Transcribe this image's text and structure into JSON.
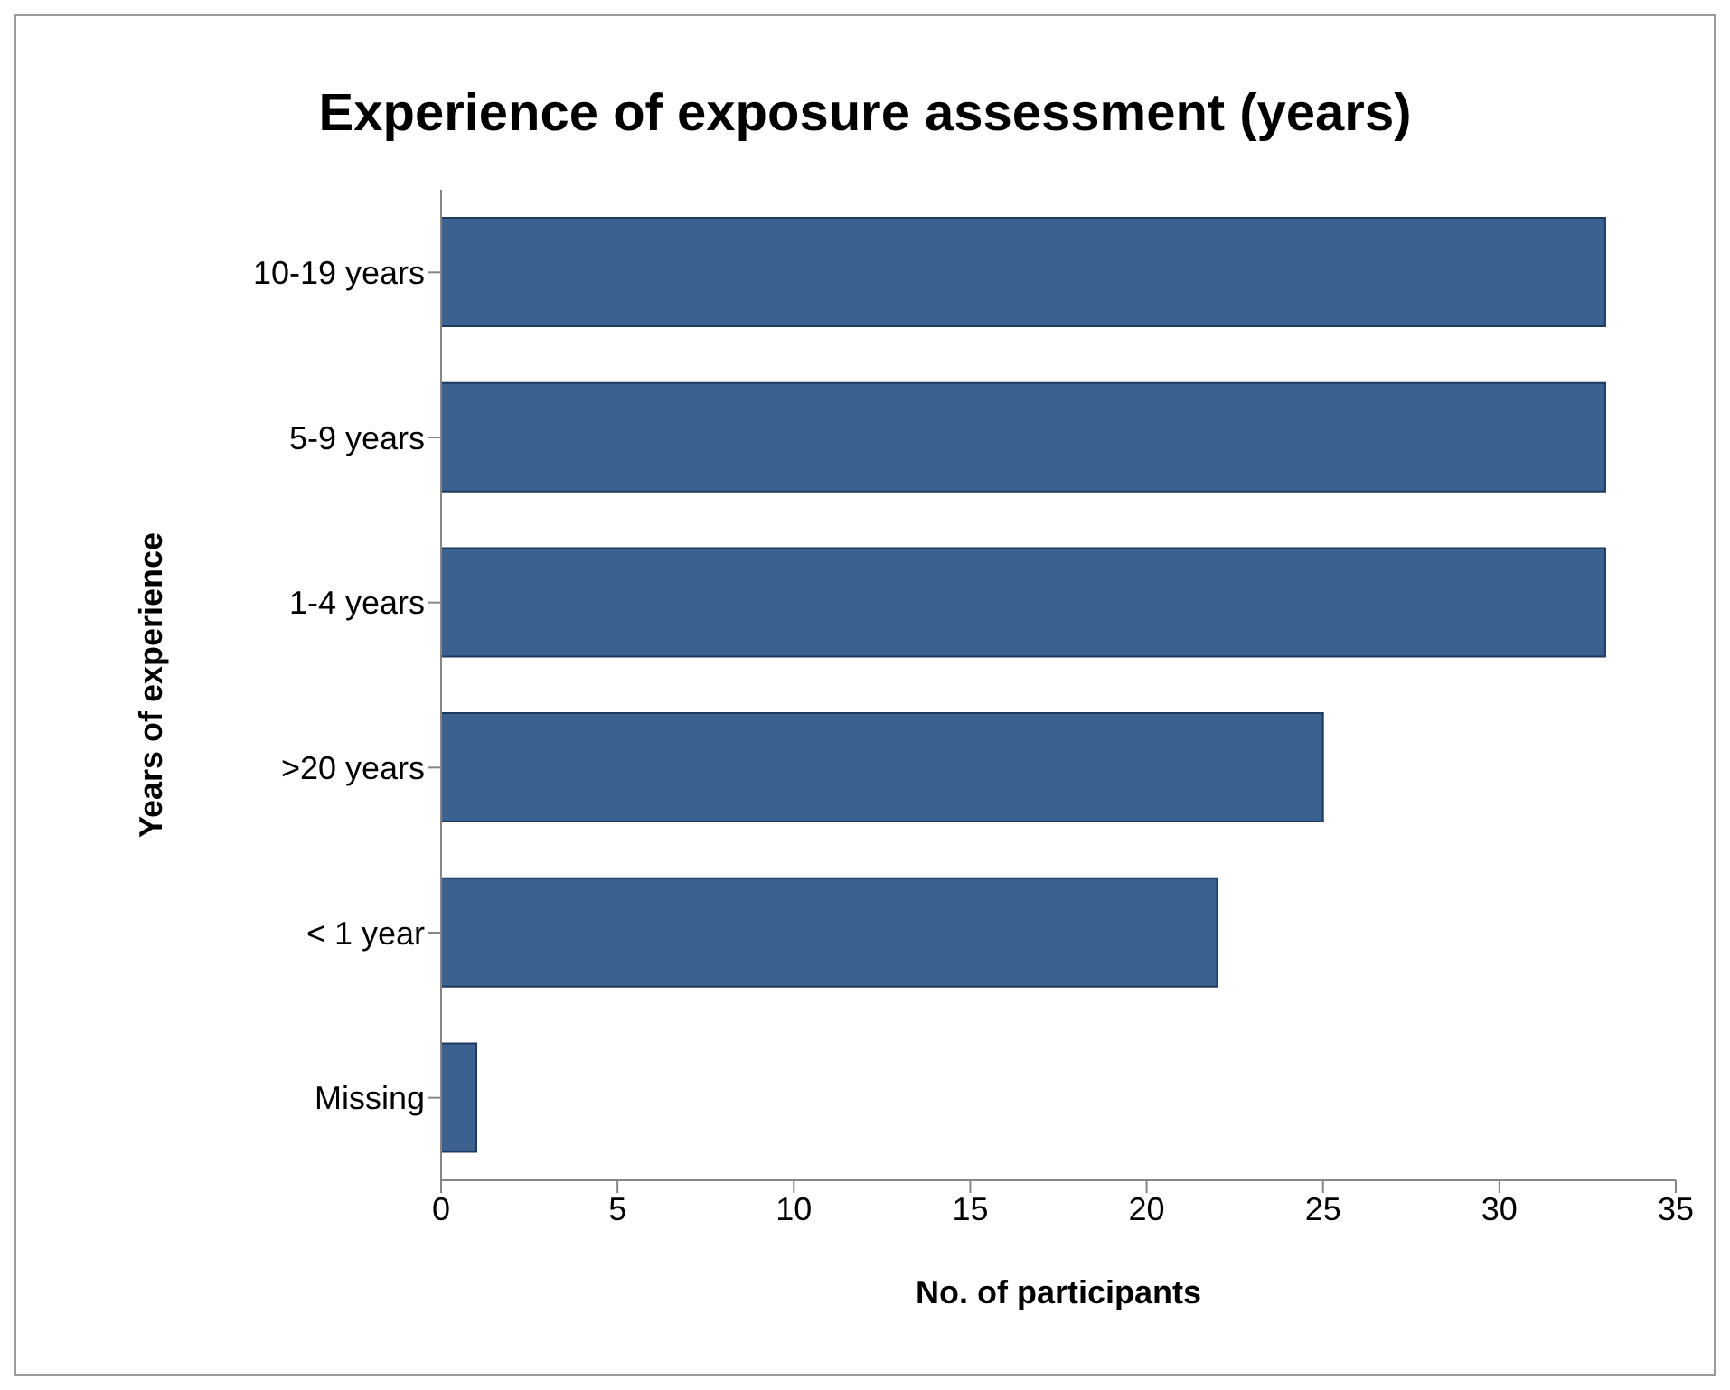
{
  "chart_data": {
    "type": "bar",
    "orientation": "horizontal",
    "title": "Experience of exposure assessment (years)",
    "xlabel": "No. of participants",
    "ylabel": "Years of experience",
    "categories": [
      "10-19 years",
      "5-9 years",
      "1-4 years",
      ">20 years",
      "< 1 year",
      "Missing"
    ],
    "values": [
      33,
      33,
      33,
      25,
      22,
      1
    ],
    "color": "#3a6190",
    "xlim": [
      0,
      35
    ],
    "xticks": [
      0,
      5,
      10,
      15,
      20,
      25,
      30,
      35
    ],
    "grid": false,
    "legend": false
  }
}
